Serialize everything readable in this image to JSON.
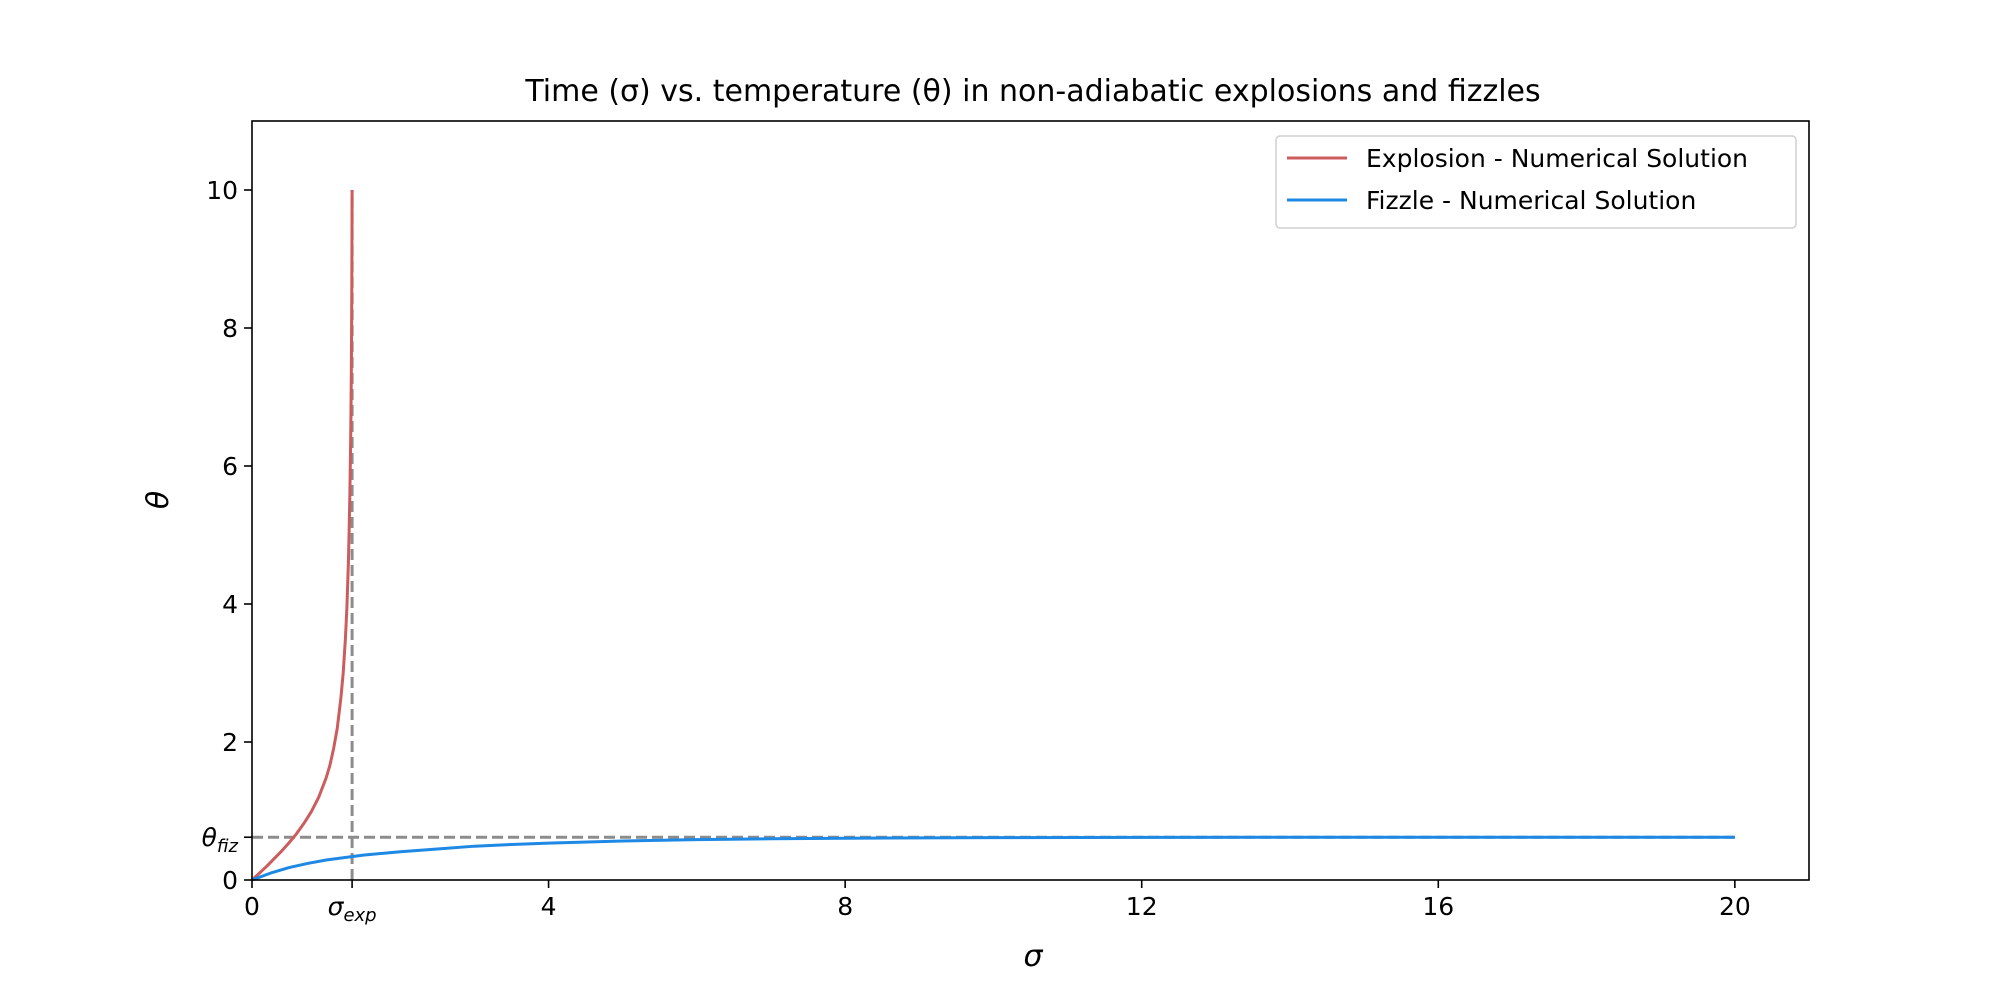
{
  "chart_data": {
    "type": "line",
    "title": "Time (σ) vs. temperature (θ) in non-adiabatic explosions and fizzles",
    "xlabel": "σ",
    "ylabel": "θ",
    "xlim": [
      0,
      21
    ],
    "ylim": [
      0,
      11
    ],
    "grid": false,
    "legend_position": "top-right",
    "x_ticks": [
      {
        "value": 0,
        "label": "0"
      },
      {
        "value": 1.35,
        "label": "σ",
        "sub": "exp"
      },
      {
        "value": 4,
        "label": "4"
      },
      {
        "value": 8,
        "label": "8"
      },
      {
        "value": 12,
        "label": "12"
      },
      {
        "value": 16,
        "label": "16"
      },
      {
        "value": 20,
        "label": "20"
      }
    ],
    "y_ticks": [
      {
        "value": 0,
        "label": "0"
      },
      {
        "value": 0.62,
        "label": "θ",
        "sub": "fiz"
      },
      {
        "value": 2,
        "label": "2"
      },
      {
        "value": 4,
        "label": "4"
      },
      {
        "value": 6,
        "label": "6"
      },
      {
        "value": 8,
        "label": "8"
      },
      {
        "value": 10,
        "label": "10"
      }
    ],
    "reference_lines": [
      {
        "orientation": "vertical",
        "value": 1.35,
        "y_range": [
          0,
          10
        ],
        "color": "#8c8c8c",
        "style": "dashed"
      },
      {
        "orientation": "horizontal",
        "value": 0.62,
        "x_range": [
          0,
          20
        ],
        "color": "#8c8c8c",
        "style": "dashed"
      }
    ],
    "series": [
      {
        "name": "Explosion - Numerical Solution",
        "color": "#cd5c5c",
        "x": [
          0,
          0.1,
          0.2,
          0.3,
          0.4,
          0.5,
          0.6,
          0.7,
          0.8,
          0.9,
          1.0,
          1.05,
          1.1,
          1.15,
          1.2,
          1.23,
          1.26,
          1.28,
          1.3,
          1.31,
          1.32,
          1.33,
          1.335,
          1.34,
          1.345,
          1.348,
          1.35
        ],
        "y": [
          0,
          0.1,
          0.2,
          0.31,
          0.42,
          0.54,
          0.67,
          0.82,
          0.99,
          1.2,
          1.48,
          1.66,
          1.9,
          2.2,
          2.65,
          3.0,
          3.5,
          3.95,
          4.6,
          5.05,
          5.6,
          6.3,
          6.8,
          7.4,
          8.3,
          9.1,
          10.0
        ]
      },
      {
        "name": "Fizzle - Numerical Solution",
        "color": "#1e88e5",
        "x": [
          0,
          0.25,
          0.5,
          0.75,
          1.0,
          1.5,
          2.0,
          2.5,
          3.0,
          3.5,
          4.0,
          5.0,
          6.0,
          7.0,
          8.0,
          10.0,
          12.0,
          14.0,
          16.0,
          18.0,
          20.0
        ],
        "y": [
          0,
          0.1,
          0.18,
          0.24,
          0.29,
          0.36,
          0.41,
          0.45,
          0.49,
          0.515,
          0.535,
          0.565,
          0.585,
          0.598,
          0.606,
          0.614,
          0.617,
          0.619,
          0.62,
          0.62,
          0.62
        ]
      }
    ]
  }
}
